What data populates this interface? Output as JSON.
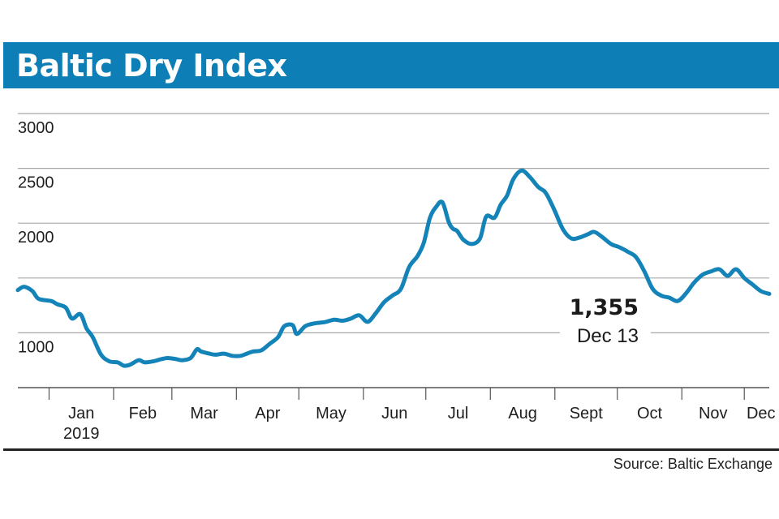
{
  "header": {
    "title": "Baltic Dry Index"
  },
  "source": "Source: Baltic Exchange",
  "colors": {
    "title_bar": "#0e7fb6",
    "line": "#1483b8",
    "grid": "#a8a8a8"
  },
  "chart_data": {
    "type": "line",
    "title": "Baltic Dry Index",
    "xlabel": "",
    "ylabel": "",
    "ylim": [
      500,
      3000
    ],
    "yticks": [
      1000,
      1500,
      2000,
      2500,
      3000
    ],
    "ytick_labels": [
      "1000",
      "",
      "2000",
      "2500",
      "3000"
    ],
    "grid": "horizontal",
    "months": [
      {
        "label": "Jan",
        "sub": "2019",
        "month": 1
      },
      {
        "label": "Feb",
        "month": 2
      },
      {
        "label": "Mar",
        "month": 3
      },
      {
        "label": "Apr",
        "month": 4
      },
      {
        "label": "May",
        "month": 5
      },
      {
        "label": "Jun",
        "month": 6
      },
      {
        "label": "Jul",
        "month": 7
      },
      {
        "label": "Aug",
        "month": 8
      },
      {
        "label": "Sept",
        "month": 9
      },
      {
        "label": "Oct",
        "month": 10
      },
      {
        "label": "Nov",
        "month": 11
      },
      {
        "label": "Dec",
        "month": 12
      }
    ],
    "series": [
      {
        "x": [
          "2018-12-17",
          "2018-12-20",
          "2018-12-24",
          "2018-12-27",
          "2019-01-02",
          "2019-01-05",
          "2019-01-09",
          "2019-01-12",
          "2019-01-16",
          "2019-01-19",
          "2019-01-22",
          "2019-01-26",
          "2019-01-30",
          "2019-02-03",
          "2019-02-06",
          "2019-02-09",
          "2019-02-13",
          "2019-02-16",
          "2019-02-20",
          "2019-02-24",
          "2019-02-27",
          "2019-03-03",
          "2019-03-06",
          "2019-03-10",
          "2019-03-13",
          "2019-03-15",
          "2019-03-19",
          "2019-03-22",
          "2019-03-26",
          "2019-03-30",
          "2019-04-03",
          "2019-04-06",
          "2019-04-09",
          "2019-04-13",
          "2019-04-17",
          "2019-04-21",
          "2019-04-24",
          "2019-04-28",
          "2019-04-30",
          "2019-05-04",
          "2019-05-07",
          "2019-05-10",
          "2019-05-14",
          "2019-05-18",
          "2019-05-22",
          "2019-05-26",
          "2019-05-30",
          "2019-06-03",
          "2019-06-07",
          "2019-06-11",
          "2019-06-15",
          "2019-06-19",
          "2019-06-23",
          "2019-06-27",
          "2019-06-30",
          "2019-07-03",
          "2019-07-06",
          "2019-07-09",
          "2019-07-12",
          "2019-07-14",
          "2019-07-16",
          "2019-07-19",
          "2019-07-23",
          "2019-07-27",
          "2019-07-30",
          "2019-08-03",
          "2019-08-06",
          "2019-08-09",
          "2019-08-12",
          "2019-08-16",
          "2019-08-20",
          "2019-08-24",
          "2019-08-27",
          "2019-08-29",
          "2019-09-01",
          "2019-09-05",
          "2019-09-09",
          "2019-09-13",
          "2019-09-17",
          "2019-09-20",
          "2019-09-24",
          "2019-09-28",
          "2019-10-02",
          "2019-10-06",
          "2019-10-10",
          "2019-10-14",
          "2019-10-18",
          "2019-10-22",
          "2019-10-26",
          "2019-10-30",
          "2019-11-03",
          "2019-11-07",
          "2019-11-11",
          "2019-11-15",
          "2019-11-19",
          "2019-11-23",
          "2019-11-27",
          "2019-12-01",
          "2019-12-05",
          "2019-12-09",
          "2019-12-13"
        ],
        "values": [
          1390,
          1420,
          1380,
          1310,
          1290,
          1260,
          1230,
          1130,
          1170,
          1040,
          960,
          800,
          740,
          730,
          700,
          710,
          750,
          730,
          740,
          760,
          770,
          760,
          750,
          770,
          850,
          830,
          810,
          800,
          810,
          790,
          790,
          810,
          830,
          840,
          900,
          960,
          1060,
          1070,
          990,
          1060,
          1080,
          1090,
          1100,
          1120,
          1110,
          1130,
          1160,
          1100,
          1180,
          1280,
          1340,
          1400,
          1600,
          1700,
          1820,
          2050,
          2150,
          2190,
          2010,
          1950,
          1930,
          1850,
          1810,
          1860,
          2060,
          2050,
          2170,
          2250,
          2400,
          2480,
          2420,
          2330,
          2290,
          2230,
          2110,
          1940,
          1860,
          1870,
          1900,
          1920,
          1870,
          1810,
          1780,
          1740,
          1690,
          1560,
          1400,
          1340,
          1320,
          1290,
          1360,
          1460,
          1530,
          1560,
          1580,
          1520,
          1580,
          1500,
          1440,
          1380,
          1355
        ]
      }
    ],
    "annotation": {
      "value_label": "1,355",
      "date_label": "Dec 13",
      "x": "2019-12-13",
      "value": 1355
    }
  }
}
